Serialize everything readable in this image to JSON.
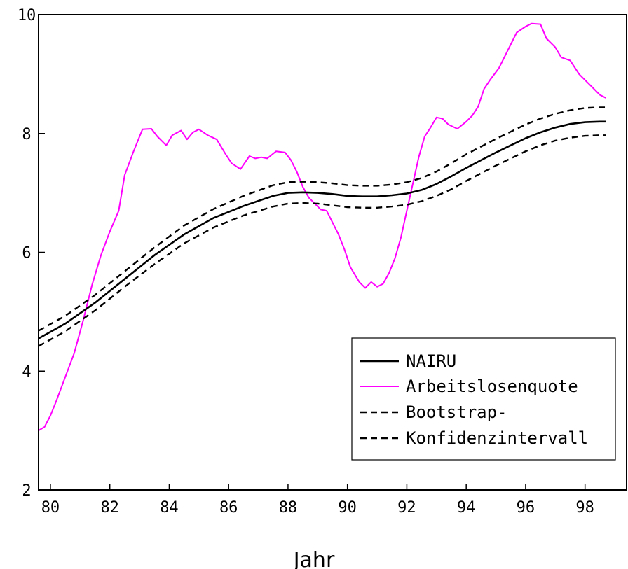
{
  "chart_data": {
    "type": "line",
    "xlabel": "Jahr",
    "ylabel": "",
    "xlim": [
      79.6,
      99.4
    ],
    "ylim": [
      2,
      10
    ],
    "xticks": [
      80,
      82,
      84,
      86,
      88,
      90,
      92,
      94,
      96,
      98
    ],
    "yticks": [
      2,
      4,
      6,
      8,
      10
    ],
    "grid": false,
    "legend_position": "bottom-right",
    "legend": [
      "NAIRU",
      "Arbeitslosenquote",
      "Bootstrap-",
      "Konfidenzintervall"
    ],
    "series": [
      {
        "name": "NAIRU",
        "color": "#000000",
        "style": "solid",
        "x": [
          79.6,
          80.5,
          81.5,
          82.5,
          83.5,
          84.5,
          85.5,
          86.5,
          87.5,
          88.0,
          88.5,
          89.0,
          89.5,
          90.0,
          90.5,
          91.0,
          91.5,
          92.0,
          92.5,
          93.0,
          93.5,
          94.0,
          94.5,
          95.0,
          95.5,
          96.0,
          96.5,
          97.0,
          97.5,
          98.0,
          98.5,
          98.7
        ],
        "y": [
          4.55,
          4.8,
          5.15,
          5.55,
          5.95,
          6.3,
          6.58,
          6.78,
          6.95,
          7.0,
          7.01,
          7.0,
          6.98,
          6.95,
          6.94,
          6.94,
          6.96,
          6.99,
          7.05,
          7.15,
          7.28,
          7.42,
          7.55,
          7.68,
          7.8,
          7.92,
          8.02,
          8.1,
          8.16,
          8.19,
          8.2,
          8.2
        ]
      },
      {
        "name": "Arbeitslosenquote",
        "color": "#ff00ff",
        "style": "solid",
        "x": [
          79.6,
          79.8,
          80.0,
          80.2,
          80.5,
          80.8,
          81.1,
          81.4,
          81.7,
          82.0,
          82.3,
          82.5,
          82.8,
          83.1,
          83.4,
          83.6,
          83.9,
          84.1,
          84.4,
          84.6,
          84.8,
          85.0,
          85.3,
          85.6,
          85.9,
          86.1,
          86.4,
          86.7,
          86.9,
          87.1,
          87.3,
          87.6,
          87.9,
          88.1,
          88.3,
          88.5,
          88.7,
          88.9,
          89.1,
          89.3,
          89.5,
          89.7,
          89.9,
          90.1,
          90.4,
          90.6,
          90.8,
          91.0,
          91.2,
          91.4,
          91.6,
          91.8,
          92.0,
          92.2,
          92.4,
          92.6,
          92.8,
          93.0,
          93.2,
          93.4,
          93.7,
          94.0,
          94.2,
          94.4,
          94.6,
          94.8,
          95.1,
          95.4,
          95.7,
          96.0,
          96.2,
          96.5,
          96.7,
          97.0,
          97.2,
          97.5,
          97.8,
          98.0,
          98.2,
          98.4,
          98.5,
          98.7
        ],
        "y": [
          3.0,
          3.06,
          3.25,
          3.5,
          3.9,
          4.3,
          4.85,
          5.45,
          5.95,
          6.35,
          6.7,
          7.3,
          7.7,
          8.07,
          8.08,
          7.95,
          7.8,
          7.97,
          8.05,
          7.9,
          8.02,
          8.07,
          7.97,
          7.9,
          7.65,
          7.5,
          7.4,
          7.62,
          7.58,
          7.6,
          7.58,
          7.7,
          7.68,
          7.55,
          7.35,
          7.1,
          6.92,
          6.82,
          6.72,
          6.7,
          6.5,
          6.3,
          6.05,
          5.75,
          5.5,
          5.4,
          5.5,
          5.42,
          5.47,
          5.65,
          5.9,
          6.25,
          6.7,
          7.15,
          7.6,
          7.95,
          8.1,
          8.27,
          8.25,
          8.15,
          8.08,
          8.2,
          8.3,
          8.45,
          8.75,
          8.9,
          9.1,
          9.4,
          9.7,
          9.8,
          9.85,
          9.84,
          9.6,
          9.45,
          9.28,
          9.23,
          9.0,
          8.9,
          8.8,
          8.7,
          8.65,
          8.6
        ]
      },
      {
        "name": "Bootstrap- Konfidenzintervall (oben)",
        "color": "#000000",
        "style": "dashed",
        "x": [
          79.6,
          80.5,
          81.5,
          82.5,
          83.5,
          84.5,
          85.5,
          86.5,
          87.5,
          88.0,
          88.5,
          89.0,
          89.5,
          90.0,
          90.5,
          91.0,
          91.5,
          92.0,
          92.5,
          93.0,
          93.5,
          94.0,
          94.5,
          95.0,
          95.5,
          96.0,
          96.5,
          97.0,
          97.5,
          98.0,
          98.5,
          98.7
        ],
        "y": [
          4.68,
          4.93,
          5.28,
          5.68,
          6.08,
          6.45,
          6.73,
          6.95,
          7.13,
          7.18,
          7.19,
          7.18,
          7.16,
          7.13,
          7.12,
          7.12,
          7.14,
          7.18,
          7.25,
          7.36,
          7.5,
          7.65,
          7.78,
          7.91,
          8.03,
          8.15,
          8.25,
          8.33,
          8.39,
          8.43,
          8.44,
          8.44
        ]
      },
      {
        "name": "Bootstrap- Konfidenzintervall (unten)",
        "color": "#000000",
        "style": "dashed",
        "x": [
          79.6,
          80.5,
          81.5,
          82.5,
          83.5,
          84.5,
          85.5,
          86.5,
          87.5,
          88.0,
          88.5,
          89.0,
          89.5,
          90.0,
          90.5,
          91.0,
          91.5,
          92.0,
          92.5,
          93.0,
          93.5,
          94.0,
          94.5,
          95.0,
          95.5,
          96.0,
          96.5,
          97.0,
          97.5,
          98.0,
          98.5,
          98.7
        ],
        "y": [
          4.42,
          4.67,
          5.02,
          5.42,
          5.8,
          6.15,
          6.42,
          6.62,
          6.77,
          6.82,
          6.83,
          6.82,
          6.79,
          6.76,
          6.75,
          6.75,
          6.77,
          6.8,
          6.86,
          6.95,
          7.06,
          7.2,
          7.33,
          7.46,
          7.58,
          7.7,
          7.8,
          7.88,
          7.93,
          7.96,
          7.97,
          7.97
        ]
      }
    ]
  }
}
